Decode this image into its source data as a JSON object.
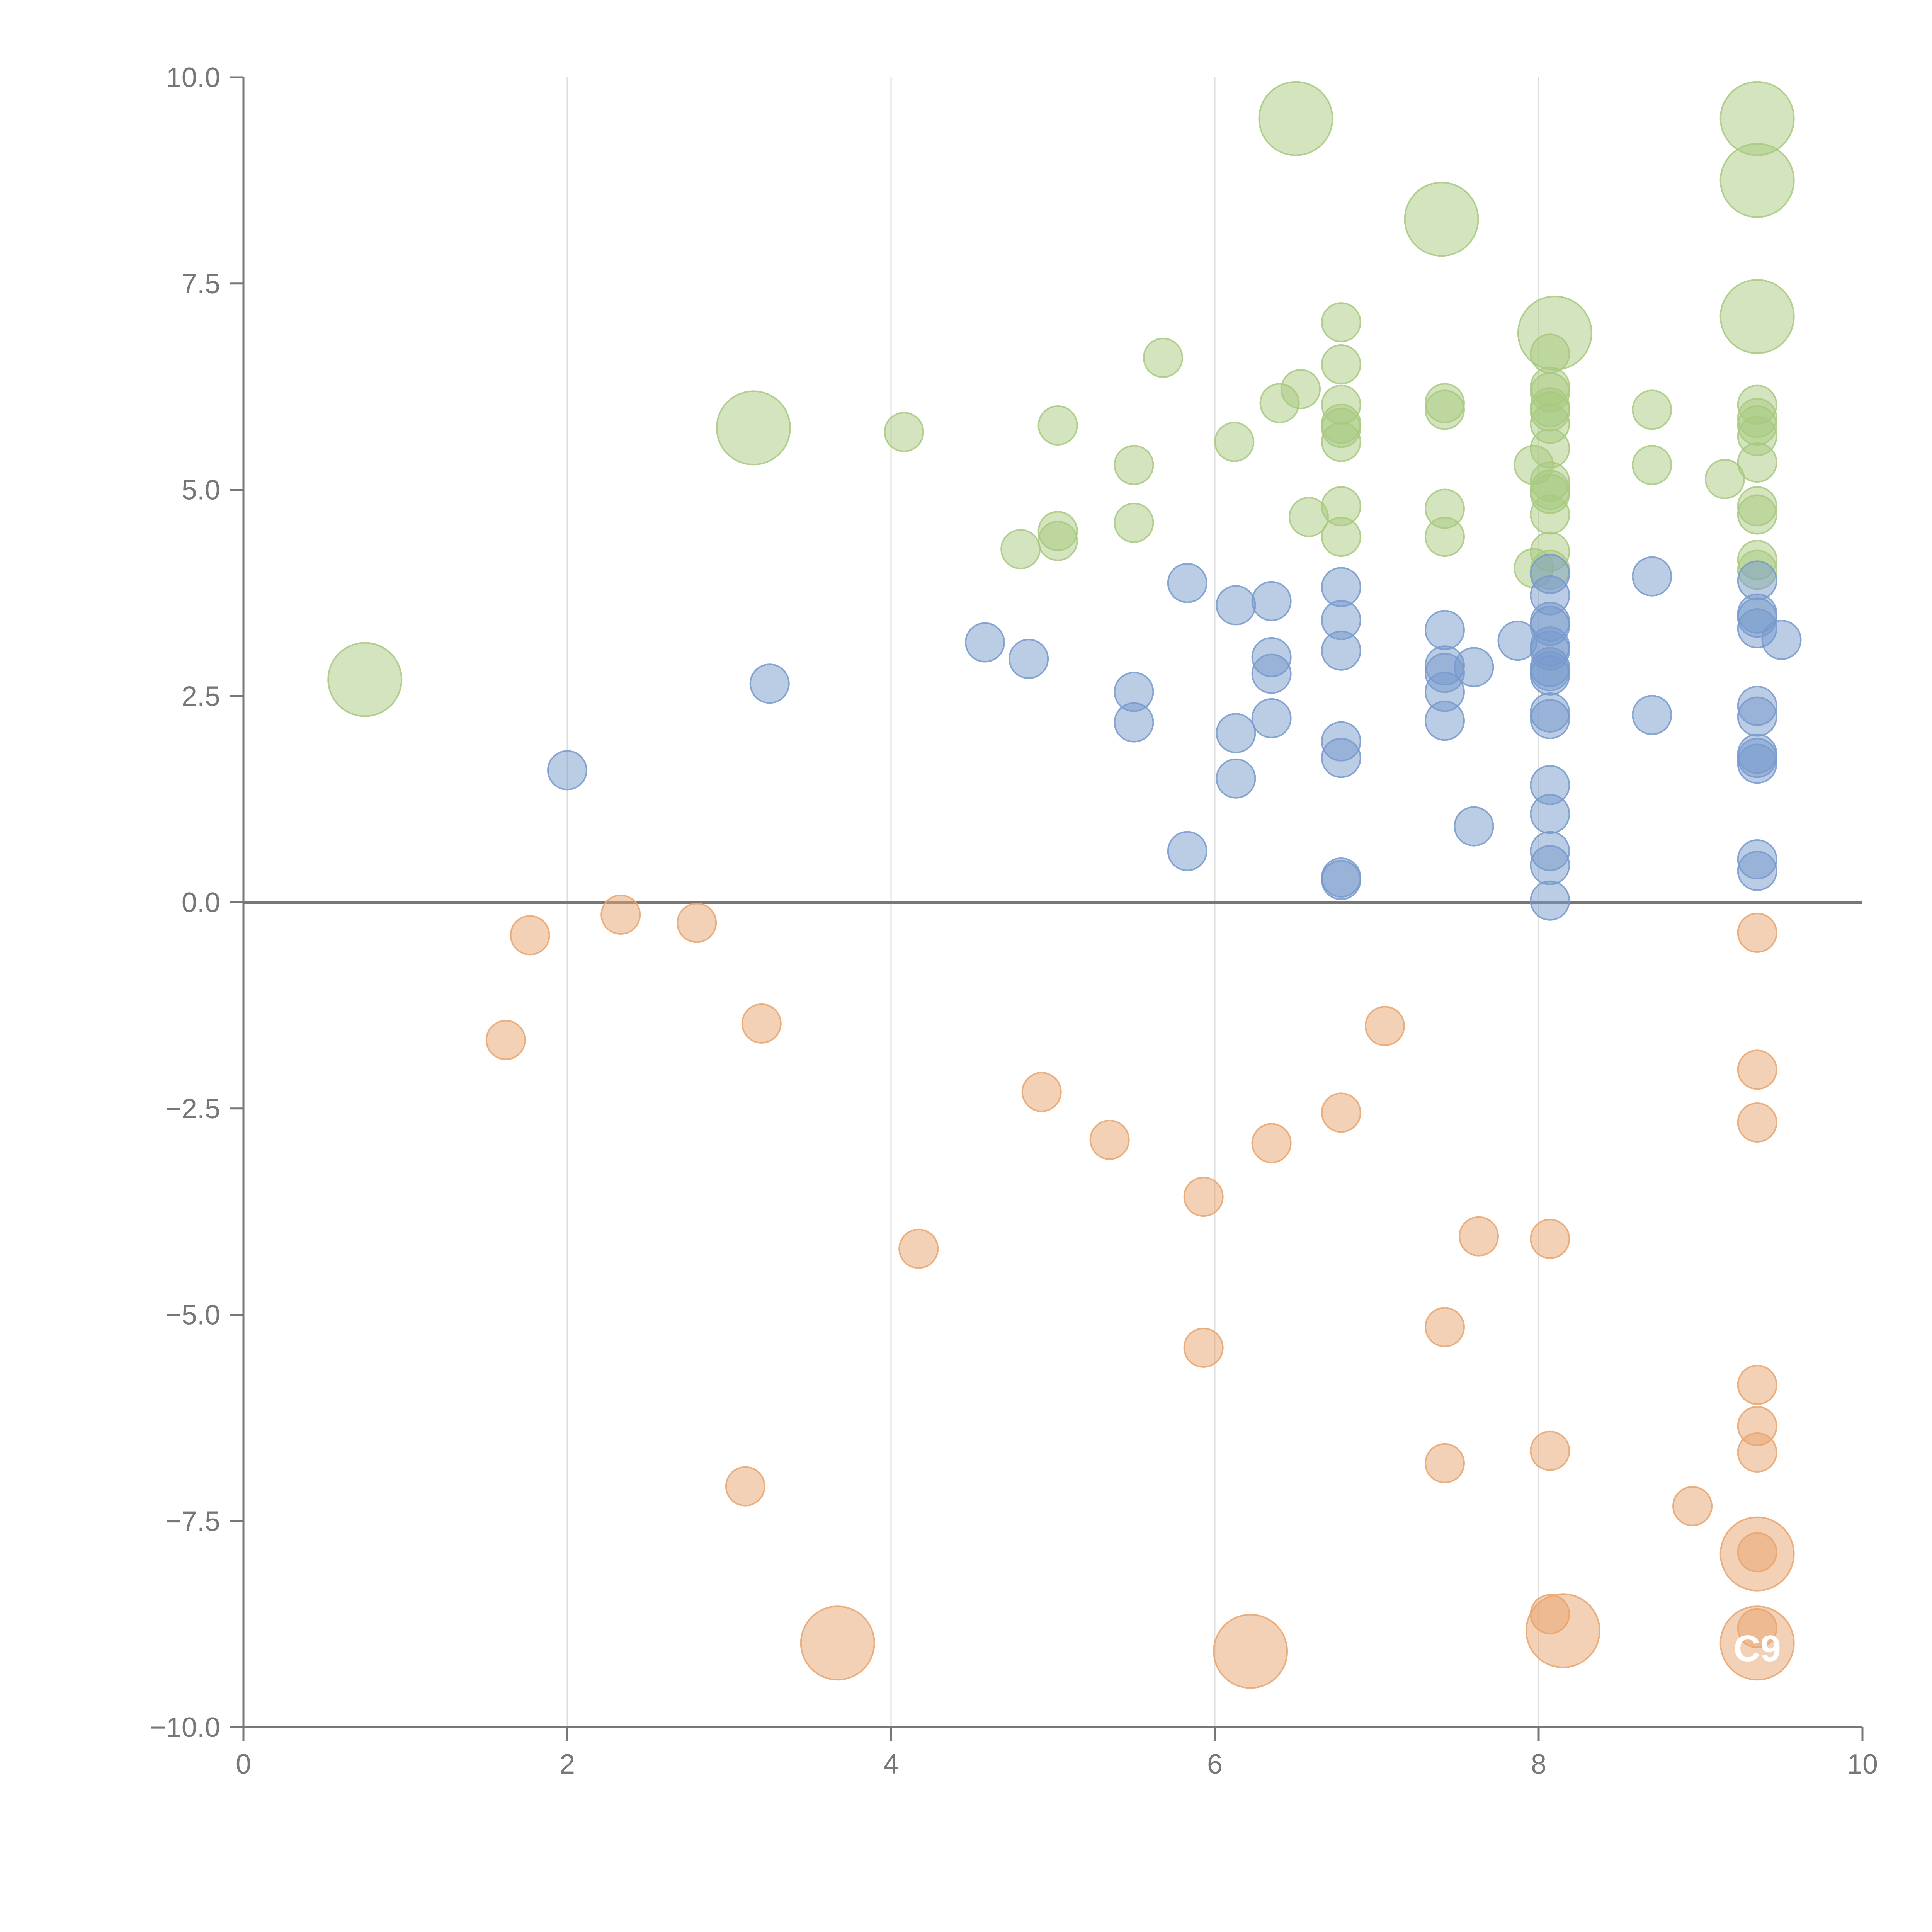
{
  "chart_data": {
    "type": "scatter",
    "title": "",
    "xlabel": "",
    "ylabel": "",
    "xlim": [
      0,
      10
    ],
    "ylim": [
      -10,
      10
    ],
    "x_ticks": [
      "0",
      "2",
      "4",
      "6",
      "8",
      "10"
    ],
    "y_ticks": [
      "10.0",
      "7.5",
      "5.0",
      "2.5",
      "0.0",
      "−2.5",
      "−5.0",
      "−7.5",
      "−10.0"
    ],
    "grid": "vertical",
    "zero_line": true,
    "colors": {
      "green": "#a8c97f",
      "blue": "#7799cc",
      "orange": "#e8a46e",
      "axis": "#777777",
      "grid": "#dddddd"
    },
    "series": [
      {
        "name": "green",
        "color": "#a8c97f",
        "points": [
          [
            6.5,
            9.5
          ],
          [
            7.4,
            8.28
          ],
          [
            9.35,
            9.5
          ],
          [
            9.35,
            8.75
          ],
          [
            9.35,
            7.1
          ],
          [
            8.1,
            6.9
          ],
          [
            3.15,
            5.75
          ],
          [
            0.75,
            2.7
          ],
          [
            4.08,
            5.7
          ],
          [
            4.8,
            4.28
          ],
          [
            5.03,
            5.78
          ],
          [
            5.03,
            4.5
          ],
          [
            5.03,
            4.38
          ],
          [
            5.5,
            5.3
          ],
          [
            5.5,
            4.6
          ],
          [
            5.68,
            6.6
          ],
          [
            6.12,
            5.58
          ],
          [
            6.4,
            6.05
          ],
          [
            6.53,
            6.22
          ],
          [
            6.58,
            4.67
          ],
          [
            6.78,
            7.03
          ],
          [
            6.78,
            6.52
          ],
          [
            6.78,
            6.03
          ],
          [
            6.78,
            5.8
          ],
          [
            6.78,
            5.75
          ],
          [
            6.78,
            5.58
          ],
          [
            6.78,
            4.8
          ],
          [
            6.78,
            4.43
          ],
          [
            7.42,
            6.05
          ],
          [
            7.42,
            5.97
          ],
          [
            7.42,
            4.77
          ],
          [
            7.42,
            4.43
          ],
          [
            7.97,
            5.3
          ],
          [
            7.97,
            4.05
          ],
          [
            8.07,
            6.65
          ],
          [
            8.07,
            6.25
          ],
          [
            8.07,
            6.18
          ],
          [
            8.07,
            6.0
          ],
          [
            8.07,
            5.95
          ],
          [
            8.07,
            5.8
          ],
          [
            8.07,
            5.5
          ],
          [
            8.07,
            5.1
          ],
          [
            8.07,
            5.0
          ],
          [
            8.07,
            4.95
          ],
          [
            8.07,
            4.7
          ],
          [
            8.07,
            4.25
          ],
          [
            8.07,
            4.03
          ],
          [
            8.7,
            5.97
          ],
          [
            8.7,
            5.3
          ],
          [
            9.15,
            5.13
          ],
          [
            9.35,
            6.03
          ],
          [
            9.35,
            5.87
          ],
          [
            9.35,
            5.78
          ],
          [
            9.35,
            5.65
          ],
          [
            9.35,
            5.33
          ],
          [
            9.35,
            4.8
          ],
          [
            9.35,
            4.7
          ],
          [
            9.35,
            4.15
          ],
          [
            9.35,
            4.03
          ]
        ],
        "large": [
          0,
          1,
          2,
          3,
          4,
          5,
          6,
          7
        ]
      },
      {
        "name": "blue",
        "color": "#7799cc",
        "points": [
          [
            2.0,
            1.6
          ],
          [
            3.25,
            2.65
          ],
          [
            4.58,
            3.15
          ],
          [
            4.85,
            2.95
          ],
          [
            5.5,
            2.55
          ],
          [
            5.5,
            2.18
          ],
          [
            5.83,
            3.87
          ],
          [
            5.83,
            0.62
          ],
          [
            6.13,
            3.6
          ],
          [
            6.13,
            2.05
          ],
          [
            6.13,
            1.5
          ],
          [
            6.35,
            3.65
          ],
          [
            6.35,
            2.97
          ],
          [
            6.35,
            2.77
          ],
          [
            6.35,
            2.23
          ],
          [
            6.78,
            3.82
          ],
          [
            6.78,
            3.42
          ],
          [
            6.78,
            3.05
          ],
          [
            6.78,
            1.95
          ],
          [
            6.78,
            1.75
          ],
          [
            6.78,
            0.3
          ],
          [
            6.78,
            0.27
          ],
          [
            7.42,
            3.3
          ],
          [
            7.42,
            2.87
          ],
          [
            7.42,
            2.78
          ],
          [
            7.42,
            2.55
          ],
          [
            7.42,
            2.2
          ],
          [
            7.6,
            2.85
          ],
          [
            7.6,
            0.92
          ],
          [
            7.87,
            3.17
          ],
          [
            8.07,
            3.98
          ],
          [
            8.07,
            3.72
          ],
          [
            8.07,
            3.4
          ],
          [
            8.07,
            3.35
          ],
          [
            8.07,
            3.1
          ],
          [
            8.07,
            3.05
          ],
          [
            8.07,
            2.85
          ],
          [
            8.07,
            2.8
          ],
          [
            8.07,
            2.75
          ],
          [
            8.07,
            2.3
          ],
          [
            8.07,
            2.22
          ],
          [
            8.07,
            1.42
          ],
          [
            8.07,
            1.07
          ],
          [
            8.07,
            0.62
          ],
          [
            8.07,
            0.45
          ],
          [
            8.07,
            0.02
          ],
          [
            8.7,
            3.95
          ],
          [
            8.7,
            2.27
          ],
          [
            9.35,
            3.9
          ],
          [
            9.35,
            3.5
          ],
          [
            9.35,
            3.45
          ],
          [
            9.35,
            3.32
          ],
          [
            9.35,
            2.38
          ],
          [
            9.35,
            2.25
          ],
          [
            9.35,
            1.8
          ],
          [
            9.35,
            1.75
          ],
          [
            9.35,
            1.68
          ],
          [
            9.35,
            0.52
          ],
          [
            9.35,
            0.38
          ],
          [
            9.5,
            3.18
          ]
        ],
        "large": []
      },
      {
        "name": "orange",
        "color": "#e8a46e",
        "points": [
          [
            3.67,
            -8.98
          ],
          [
            6.22,
            -9.08
          ],
          [
            8.15,
            -8.83
          ],
          [
            9.35,
            -7.9
          ],
          [
            9.35,
            -8.98
          ],
          [
            1.62,
            -1.67
          ],
          [
            1.77,
            -0.4
          ],
          [
            2.33,
            -0.15
          ],
          [
            2.8,
            -0.25
          ],
          [
            3.1,
            -7.08
          ],
          [
            3.2,
            -1.47
          ],
          [
            4.17,
            -4.2
          ],
          [
            4.93,
            -2.3
          ],
          [
            5.35,
            -2.88
          ],
          [
            5.93,
            -3.57
          ],
          [
            5.93,
            -5.4
          ],
          [
            6.35,
            -2.92
          ],
          [
            6.78,
            -2.55
          ],
          [
            7.05,
            -1.5
          ],
          [
            7.42,
            -5.15
          ],
          [
            7.42,
            -6.8
          ],
          [
            7.63,
            -4.05
          ],
          [
            8.07,
            -4.08
          ],
          [
            8.07,
            -6.65
          ],
          [
            8.07,
            -8.63
          ],
          [
            8.95,
            -7.32
          ],
          [
            9.35,
            -0.37
          ],
          [
            9.35,
            -2.03
          ],
          [
            9.35,
            -2.67
          ],
          [
            9.35,
            -5.85
          ],
          [
            9.35,
            -6.35
          ],
          [
            9.35,
            -6.67
          ],
          [
            9.35,
            -7.88
          ],
          [
            9.35,
            -8.8
          ]
        ],
        "large": [
          0,
          1,
          2,
          3,
          4
        ]
      }
    ],
    "annotations": [
      {
        "text": "C9",
        "x": 9.35,
        "y": -9.2
      }
    ]
  }
}
